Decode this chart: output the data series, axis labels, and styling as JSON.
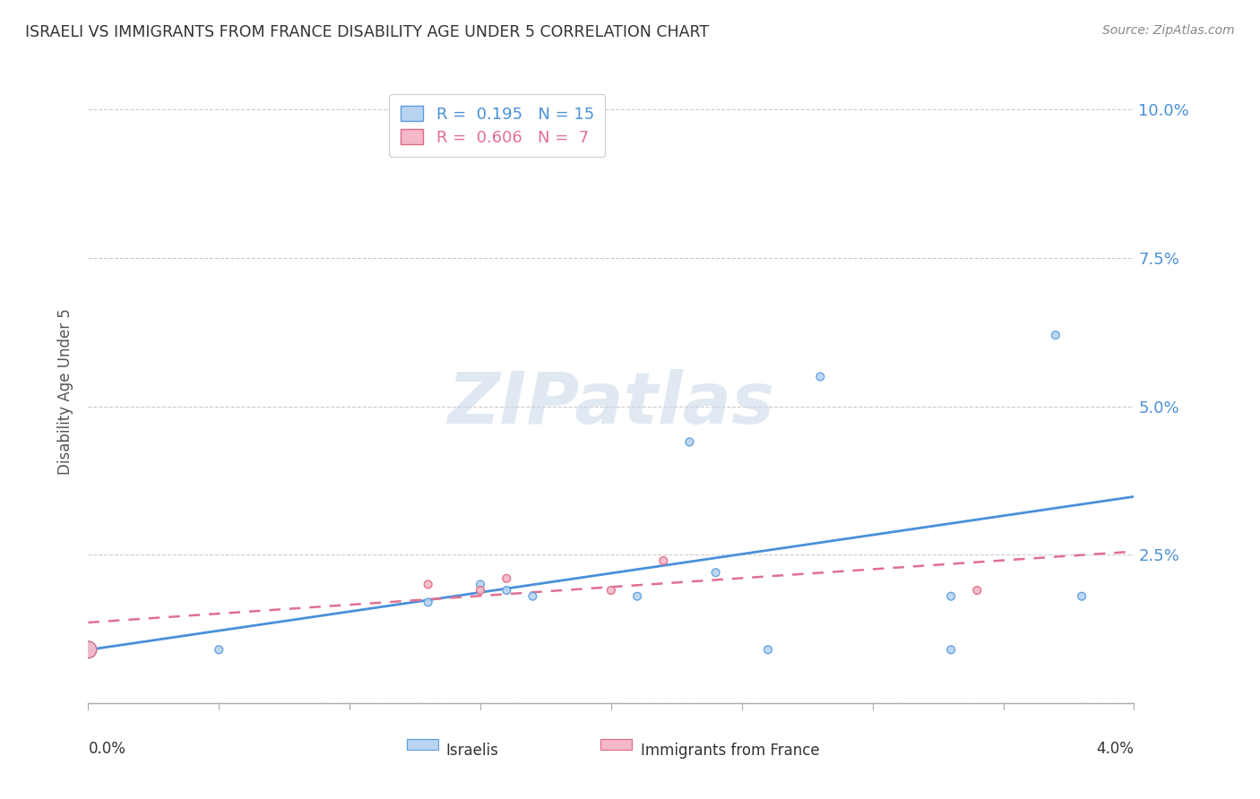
{
  "title": "ISRAELI VS IMMIGRANTS FROM FRANCE DISABILITY AGE UNDER 5 CORRELATION CHART",
  "source": "Source: ZipAtlas.com",
  "ylabel": "Disability Age Under 5",
  "watermark": "ZIPatlas",
  "legend": {
    "israeli": {
      "R": 0.195,
      "N": 15
    },
    "immigrants": {
      "R": 0.606,
      "N": 7
    }
  },
  "yticks": [
    0.0,
    0.025,
    0.05,
    0.075,
    0.1
  ],
  "ytick_labels": [
    "",
    "2.5%",
    "5.0%",
    "7.5%",
    "10.0%"
  ],
  "xlim": [
    0.0,
    0.04
  ],
  "ylim": [
    0.0,
    0.105
  ],
  "israeli_x": [
    0.0,
    0.005,
    0.013,
    0.015,
    0.016,
    0.017,
    0.021,
    0.023,
    0.024,
    0.026,
    0.028,
    0.033,
    0.033,
    0.037,
    0.038
  ],
  "israeli_y": [
    0.009,
    0.009,
    0.017,
    0.02,
    0.019,
    0.018,
    0.018,
    0.044,
    0.022,
    0.009,
    0.055,
    0.009,
    0.018,
    0.062,
    0.018
  ],
  "israeli_size": 40,
  "israeli_size_big": 180,
  "immigrants_x": [
    0.0,
    0.013,
    0.015,
    0.016,
    0.02,
    0.022,
    0.034
  ],
  "immigrants_y": [
    0.009,
    0.02,
    0.019,
    0.021,
    0.019,
    0.024,
    0.019
  ],
  "immigrants_size": 40,
  "immigrants_size_big": 180,
  "bg_color": "#ffffff",
  "grid_color": "#cccccc",
  "text_color_blue": "#4a90d9",
  "text_color_pink": "#e07090",
  "title_color": "#333333",
  "axis_color": "#aaaaaa",
  "israeli_scatter_color": "#b8d4f0",
  "israeli_scatter_edge": "#5a9de0",
  "immigrants_scatter_color": "#f4b8c8",
  "immigrants_scatter_edge": "#e06880",
  "israeli_line_color": "#4a90d9",
  "immigrants_line_color": "#e07090"
}
